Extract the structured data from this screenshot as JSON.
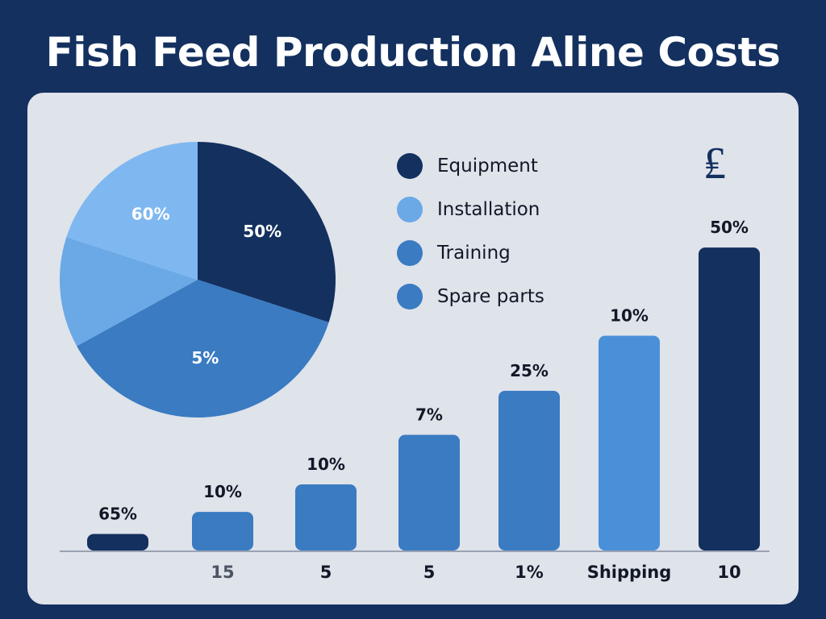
{
  "title": "Fish Feed Production Aline Costs",
  "colors": {
    "background": "#13305f",
    "panel": "#dfe3ea",
    "dark_navy": "#13305f",
    "light_blue": "#7fb8f0",
    "medium_blue": "#3a7bc2",
    "bright_blue": "#4a90d9"
  },
  "currency_symbol": "₤",
  "chart_data": [
    {
      "type": "pie",
      "slices": [
        {
          "label": "50%",
          "value": 30,
          "color": "#13305f"
        },
        {
          "label": "5%",
          "value": 37,
          "color": "#3a7bc2"
        },
        {
          "label": "",
          "value": 13,
          "color": "#6aa9e6"
        },
        {
          "label": "60%",
          "value": 20,
          "color": "#7fb8f0"
        }
      ]
    },
    {
      "type": "bar",
      "categories": [
        "",
        "15",
        "5",
        "5",
        "1%",
        "Shipping",
        "10"
      ],
      "values": [
        3,
        7,
        12,
        21,
        29,
        39,
        55
      ],
      "data_labels": [
        "65%",
        "10%",
        "10%",
        "7%",
        "25%",
        "10%",
        "50%"
      ],
      "colors": [
        "#13305f",
        "#3a7bc2",
        "#3a7bc2",
        "#3a7bc2",
        "#3a7bc2",
        "#4a90d9",
        "#13305f"
      ],
      "ylim": [
        0,
        60
      ]
    }
  ],
  "legend": [
    {
      "label": "Equipment",
      "color": "#13305f"
    },
    {
      "label": "Installation",
      "color": "#6aa9e6"
    },
    {
      "label": "Training",
      "color": "#3a7bc2"
    },
    {
      "label": "Spare parts",
      "color": "#3a7bc2"
    }
  ]
}
